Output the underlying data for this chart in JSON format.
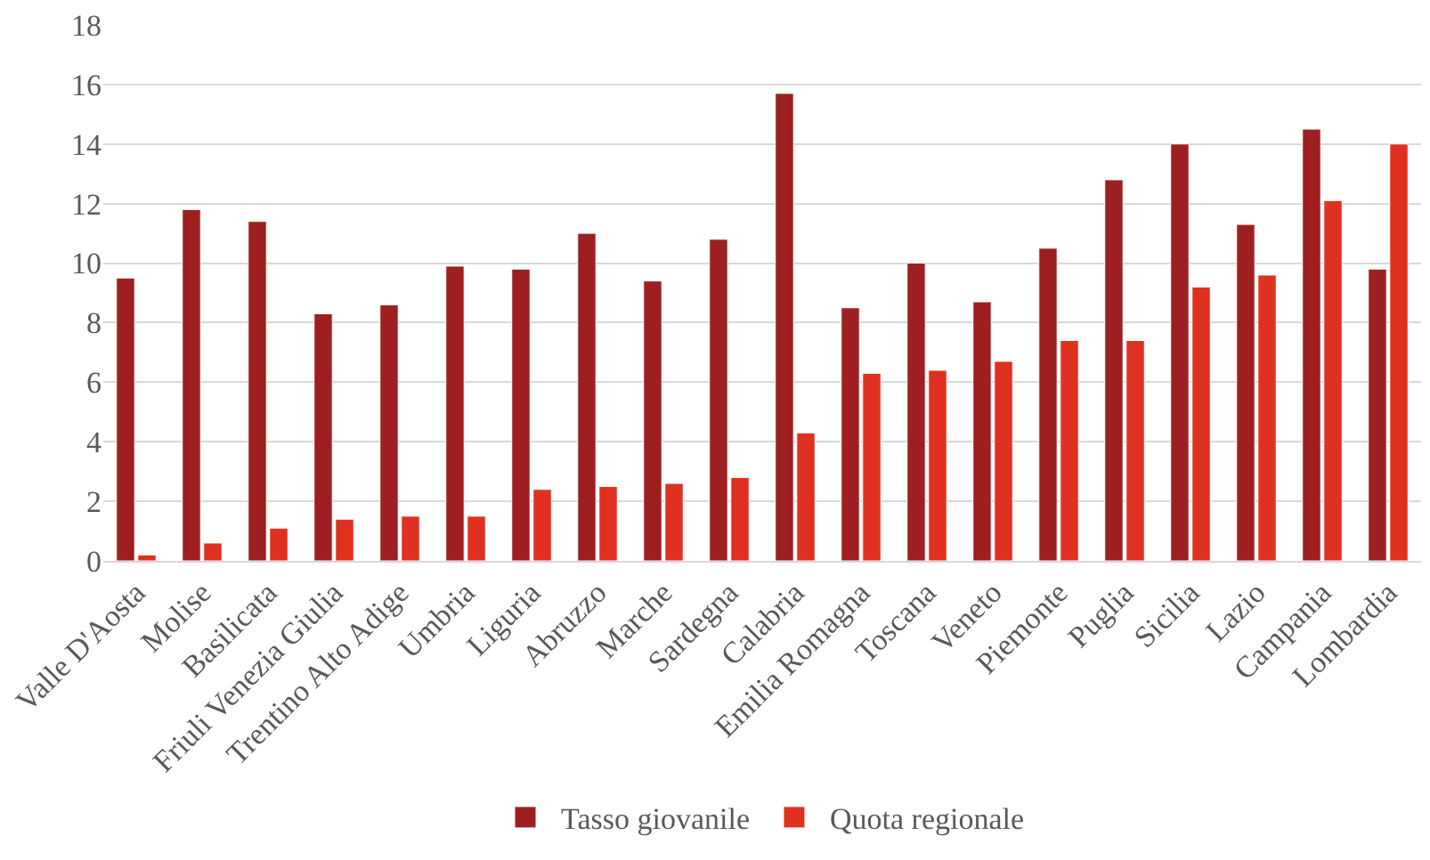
{
  "chart_data": {
    "type": "bar",
    "categories": [
      "Valle D'Aosta",
      "Molise",
      "Basilicata",
      "Friuli Venezia Giulia",
      "Trentino Alto Adige",
      "Umbria",
      "Liguria",
      "Abruzzo",
      "Marche",
      "Sardegna",
      "Calabria",
      "Emilia Romagna",
      "Toscana",
      "Veneto",
      "Piemonte",
      "Puglia",
      "Sicilia",
      "Lazio",
      "Campania",
      "Lombardia"
    ],
    "series": [
      {
        "name": "Tasso giovanile",
        "color": "#9e1f20",
        "values": [
          9.5,
          11.8,
          11.4,
          8.3,
          8.6,
          9.9,
          9.8,
          11.0,
          9.4,
          10.8,
          15.7,
          8.5,
          10.0,
          8.7,
          10.5,
          12.8,
          14.0,
          11.3,
          14.5,
          9.8
        ]
      },
      {
        "name": "Quota regionale",
        "color": "#e03020",
        "values": [
          0.2,
          0.6,
          1.1,
          1.4,
          1.5,
          1.5,
          2.4,
          2.5,
          2.6,
          2.8,
          4.3,
          6.3,
          6.4,
          6.7,
          7.4,
          7.4,
          9.2,
          9.6,
          12.1,
          14.0
        ]
      }
    ],
    "ylim": [
      0,
      18
    ],
    "yticks": [
      0,
      2,
      4,
      6,
      8,
      10,
      12,
      14,
      16,
      18
    ],
    "grid": "y",
    "legend": "bottom"
  }
}
